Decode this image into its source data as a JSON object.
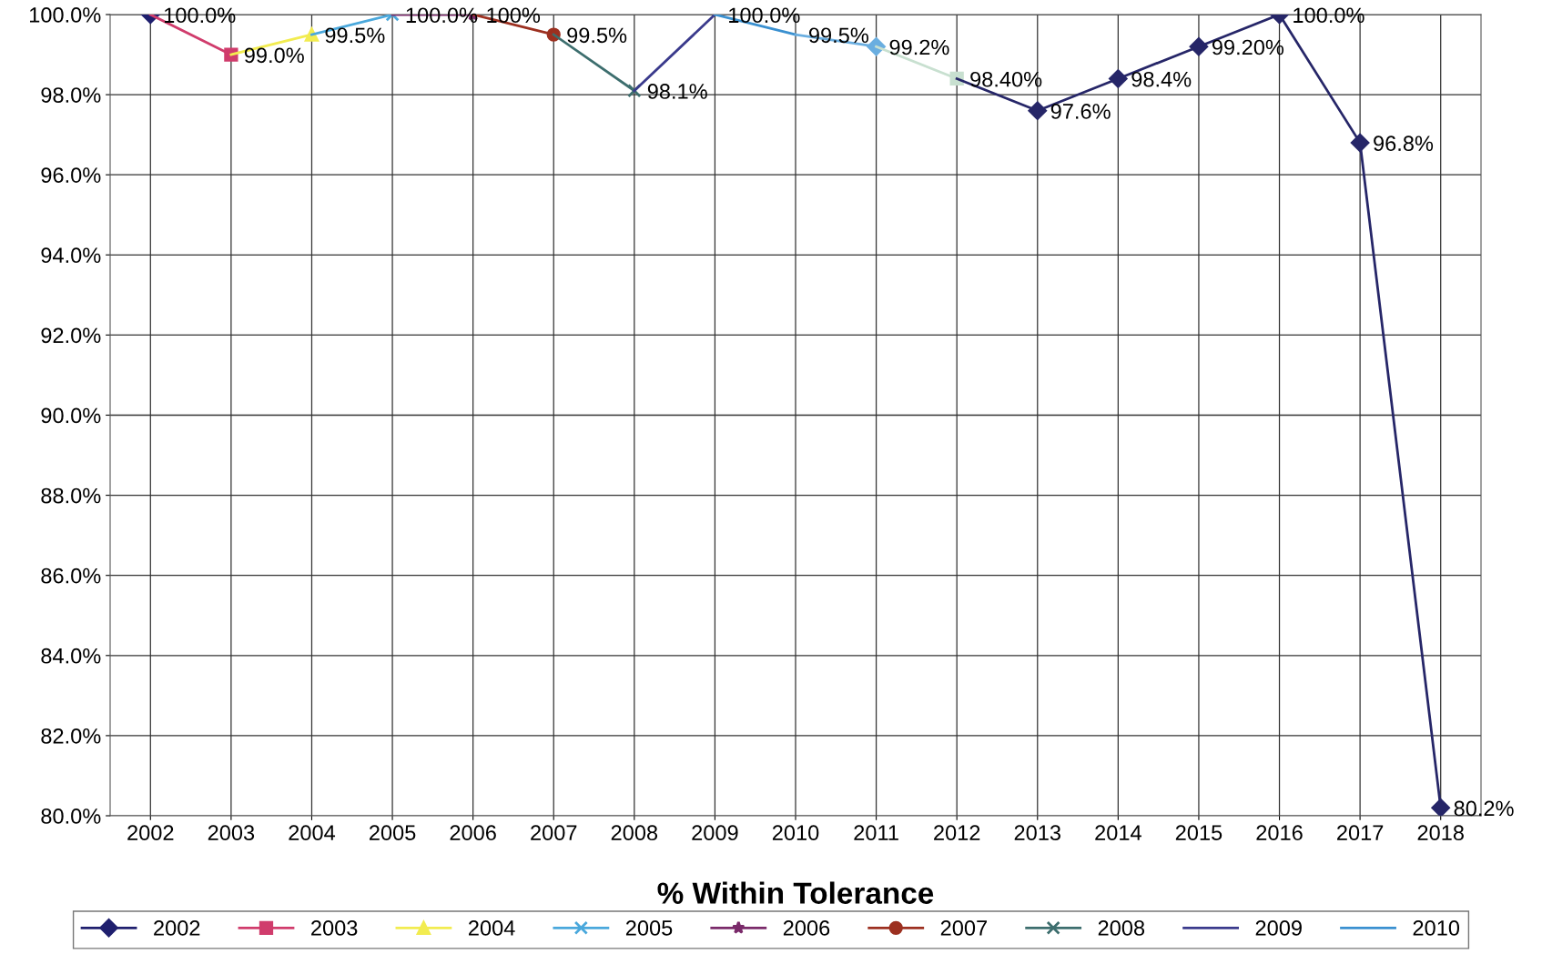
{
  "chart_data": {
    "type": "line",
    "title": "% Within Tolerance",
    "categories": [
      "2002",
      "2003",
      "2004",
      "2005",
      "2006",
      "2007",
      "2008",
      "2009",
      "2010",
      "2011",
      "2012",
      "2013",
      "2014",
      "2015",
      "2016",
      "2017",
      "2018"
    ],
    "series": [
      {
        "name": "2002",
        "color": "#1f1f6e",
        "marker": "diamond",
        "values": [
          100.0,
          null,
          null,
          null,
          null,
          null,
          null,
          null,
          null,
          null,
          null,
          null,
          null,
          null,
          null,
          null,
          null
        ],
        "value_labels": [
          "100.0%",
          null,
          null,
          null,
          null,
          null,
          null,
          null,
          null,
          null,
          null,
          null,
          null,
          null,
          null,
          null,
          null
        ]
      },
      {
        "name": "2003",
        "color": "#d03c6c",
        "marker": "square",
        "values": [
          100.0,
          99.0,
          null,
          null,
          null,
          null,
          null,
          null,
          null,
          null,
          null,
          null,
          null,
          null,
          null,
          null,
          null
        ],
        "value_labels": [
          null,
          "99.0%",
          null,
          null,
          null,
          null,
          null,
          null,
          null,
          null,
          null,
          null,
          null,
          null,
          null,
          null,
          null
        ]
      },
      {
        "name": "2004",
        "color": "#f2ec50",
        "marker": "triangle",
        "values": [
          null,
          99.0,
          99.5,
          null,
          null,
          null,
          null,
          null,
          null,
          null,
          null,
          null,
          null,
          null,
          null,
          null,
          null
        ],
        "value_labels": [
          null,
          null,
          "99.5%",
          null,
          null,
          null,
          null,
          null,
          null,
          null,
          null,
          null,
          null,
          null,
          null,
          null,
          null
        ]
      },
      {
        "name": "2005",
        "color": "#4aa8dc",
        "marker": "cross",
        "values": [
          null,
          null,
          99.5,
          100.0,
          null,
          null,
          null,
          null,
          null,
          null,
          null,
          null,
          null,
          null,
          null,
          null,
          null
        ],
        "value_labels": [
          null,
          null,
          null,
          "100.0%",
          null,
          null,
          null,
          null,
          null,
          null,
          null,
          null,
          null,
          null,
          null,
          null,
          null
        ]
      },
      {
        "name": "2006",
        "color": "#7a2a6a",
        "marker": "star",
        "values": [
          null,
          null,
          null,
          100.0,
          100.0,
          null,
          null,
          null,
          null,
          null,
          null,
          null,
          null,
          null,
          null,
          null,
          null
        ],
        "value_labels": [
          null,
          null,
          null,
          null,
          "100%",
          null,
          null,
          null,
          null,
          null,
          null,
          null,
          null,
          null,
          null,
          null,
          null
        ]
      },
      {
        "name": "2007",
        "color": "#9c3020",
        "marker": "circle",
        "values": [
          null,
          null,
          null,
          null,
          100.0,
          99.5,
          null,
          null,
          null,
          null,
          null,
          null,
          null,
          null,
          null,
          null,
          null
        ],
        "value_labels": [
          null,
          null,
          null,
          null,
          null,
          "99.5%",
          null,
          null,
          null,
          null,
          null,
          null,
          null,
          null,
          null,
          null,
          null
        ]
      },
      {
        "name": "2008",
        "color": "#3d6e6e",
        "marker": "cross",
        "values": [
          null,
          null,
          null,
          null,
          null,
          99.5,
          98.1,
          null,
          null,
          null,
          null,
          null,
          null,
          null,
          null,
          null,
          null
        ],
        "value_labels": [
          null,
          null,
          null,
          null,
          null,
          null,
          "98.1%",
          null,
          null,
          null,
          null,
          null,
          null,
          null,
          null,
          null,
          null
        ]
      },
      {
        "name": "2009",
        "color": "#3a3a8c",
        "marker": "none",
        "values": [
          null,
          null,
          null,
          null,
          null,
          null,
          98.1,
          100.0,
          null,
          null,
          null,
          null,
          null,
          null,
          null,
          null,
          null
        ],
        "value_labels": [
          null,
          null,
          null,
          null,
          null,
          null,
          null,
          "100.0%",
          null,
          null,
          null,
          null,
          null,
          null,
          null,
          null,
          null
        ]
      },
      {
        "name": "2010",
        "color": "#3a90d0",
        "marker": "none",
        "values": [
          null,
          null,
          null,
          null,
          null,
          null,
          null,
          100.0,
          99.5,
          null,
          null,
          null,
          null,
          null,
          null,
          null,
          null
        ],
        "value_labels": [
          null,
          null,
          null,
          null,
          null,
          null,
          null,
          null,
          "99.5%",
          null,
          null,
          null,
          null,
          null,
          null,
          null,
          null
        ]
      },
      {
        "color": "#6aaee0",
        "marker": "diamond",
        "values": [
          null,
          null,
          null,
          null,
          null,
          null,
          null,
          null,
          99.5,
          99.2,
          null,
          null,
          null,
          null,
          null,
          null,
          null
        ],
        "value_labels": [
          null,
          null,
          null,
          null,
          null,
          null,
          null,
          null,
          null,
          "99.2%",
          null,
          null,
          null,
          null,
          null,
          null,
          null
        ]
      },
      {
        "color": "#c8e0d0",
        "marker": "square",
        "values": [
          null,
          null,
          null,
          null,
          null,
          null,
          null,
          null,
          null,
          99.2,
          98.4,
          null,
          null,
          null,
          null,
          null,
          null
        ],
        "value_labels": [
          null,
          null,
          null,
          null,
          null,
          null,
          null,
          null,
          null,
          null,
          "98.40%",
          null,
          null,
          null,
          null,
          null,
          null
        ]
      },
      {
        "color": "#262668",
        "marker": "diamond",
        "values": [
          null,
          null,
          null,
          null,
          null,
          null,
          null,
          null,
          null,
          null,
          98.4,
          97.6,
          null,
          null,
          null,
          null,
          null
        ],
        "value_labels": [
          null,
          null,
          null,
          null,
          null,
          null,
          null,
          null,
          null,
          null,
          null,
          "97.6%",
          null,
          null,
          null,
          null,
          null
        ]
      },
      {
        "color": "#262668",
        "marker": "diamond",
        "values": [
          null,
          null,
          null,
          null,
          null,
          null,
          null,
          null,
          null,
          null,
          null,
          97.6,
          98.4,
          null,
          null,
          null,
          null
        ],
        "value_labels": [
          null,
          null,
          null,
          null,
          null,
          null,
          null,
          null,
          null,
          null,
          null,
          null,
          "98.4%",
          null,
          null,
          null,
          null
        ]
      },
      {
        "color": "#262668",
        "marker": "diamond",
        "values": [
          null,
          null,
          null,
          null,
          null,
          null,
          null,
          null,
          null,
          null,
          null,
          null,
          98.4,
          99.2,
          null,
          null,
          null
        ],
        "value_labels": [
          null,
          null,
          null,
          null,
          null,
          null,
          null,
          null,
          null,
          null,
          null,
          null,
          null,
          "99.20%",
          null,
          null,
          null
        ]
      },
      {
        "color": "#262668",
        "marker": "diamond",
        "values": [
          null,
          null,
          null,
          null,
          null,
          null,
          null,
          null,
          null,
          null,
          null,
          null,
          null,
          99.2,
          100.0,
          null,
          null
        ],
        "value_labels": [
          null,
          null,
          null,
          null,
          null,
          null,
          null,
          null,
          null,
          null,
          null,
          null,
          null,
          null,
          "100.0%",
          null,
          null
        ]
      },
      {
        "color": "#262668",
        "marker": "diamond",
        "values": [
          null,
          null,
          null,
          null,
          null,
          null,
          null,
          null,
          null,
          null,
          null,
          null,
          null,
          null,
          100.0,
          96.8,
          null
        ],
        "value_labels": [
          null,
          null,
          null,
          null,
          null,
          null,
          null,
          null,
          null,
          null,
          null,
          null,
          null,
          null,
          null,
          "96.8%",
          null
        ]
      },
      {
        "color": "#262668",
        "marker": "diamond",
        "values": [
          null,
          null,
          null,
          null,
          null,
          null,
          null,
          null,
          null,
          null,
          null,
          null,
          null,
          null,
          null,
          96.8,
          80.2
        ],
        "value_labels": [
          null,
          null,
          null,
          null,
          null,
          null,
          null,
          null,
          null,
          null,
          null,
          null,
          null,
          null,
          null,
          null,
          "80.2%"
        ]
      }
    ],
    "ylim": [
      80,
      100
    ],
    "yticks": [
      {
        "value": 80,
        "label": "80.0%"
      },
      {
        "value": 82,
        "label": "82.0%"
      },
      {
        "value": 84,
        "label": "84.0%"
      },
      {
        "value": 86,
        "label": "86.0%"
      },
      {
        "value": 88,
        "label": "88.0%"
      },
      {
        "value": 90,
        "label": "90.0%"
      },
      {
        "value": 92,
        "label": "92.0%"
      },
      {
        "value": 94,
        "label": "94.0%"
      },
      {
        "value": 96,
        "label": "96.0%"
      },
      {
        "value": 98,
        "label": "98.0%"
      },
      {
        "value": 100,
        "label": "100.0%"
      }
    ],
    "grid": true,
    "legend": "bottom"
  }
}
